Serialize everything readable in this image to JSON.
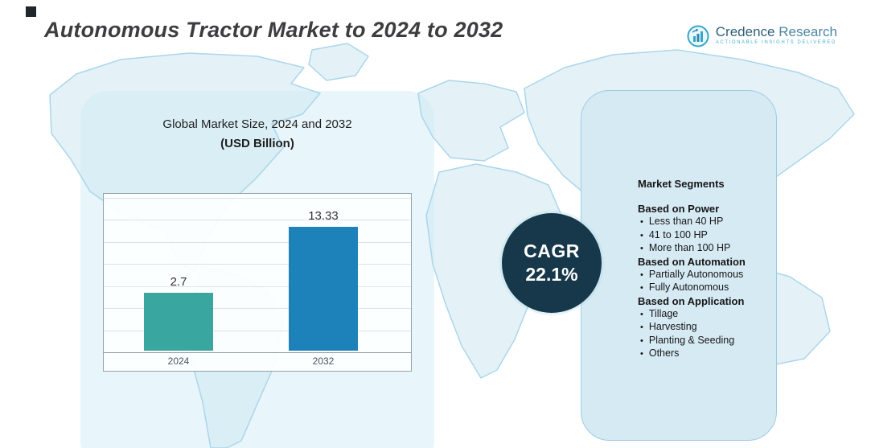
{
  "header": {
    "title": "Autonomous Tractor Market to 2024 to 2032",
    "brand": {
      "name_primary": "Credence",
      "name_secondary": "Research",
      "tagline": "Actionable Insights Delivered"
    }
  },
  "chart": {
    "title_line1": "Global Market Size, 2024 and 2032",
    "title_line2": "(USD Billion)"
  },
  "chart_data": {
    "type": "bar",
    "title": "Global Market Size, 2024 and 2032 (USD Billion)",
    "categories": [
      "2024",
      "2032"
    ],
    "values": [
      2.7,
      13.33
    ],
    "value_labels": [
      "2.7",
      "13.33"
    ],
    "xlabel": "",
    "ylabel": "",
    "bar_colors": [
      "#3aa6a0",
      "#1e82ba"
    ],
    "grid": true,
    "legend": false,
    "bar_height_fractions": [
      0.38,
      0.81
    ]
  },
  "cagr": {
    "label": "CAGR",
    "value": "22.1%",
    "badge_color": "#16384a"
  },
  "segments": {
    "title": "Market Segments",
    "groups": [
      {
        "heading": "Based on Power",
        "items": [
          "Less than 40 HP",
          "41 to 100 HP",
          "More than 100 HP"
        ]
      },
      {
        "heading": "Based on Automation",
        "items": [
          "Partially Autonomous",
          "Fully Autonomous"
        ]
      },
      {
        "heading": "Based on Application",
        "items": [
          "Tillage",
          "Harvesting",
          "Planting & Seeding",
          "Others"
        ]
      }
    ]
  },
  "colors": {
    "panel": "#d6eaf4",
    "map_fill": "#cde7f3",
    "map_stroke": "#abd6ea",
    "title_text": "#3d3d40"
  }
}
